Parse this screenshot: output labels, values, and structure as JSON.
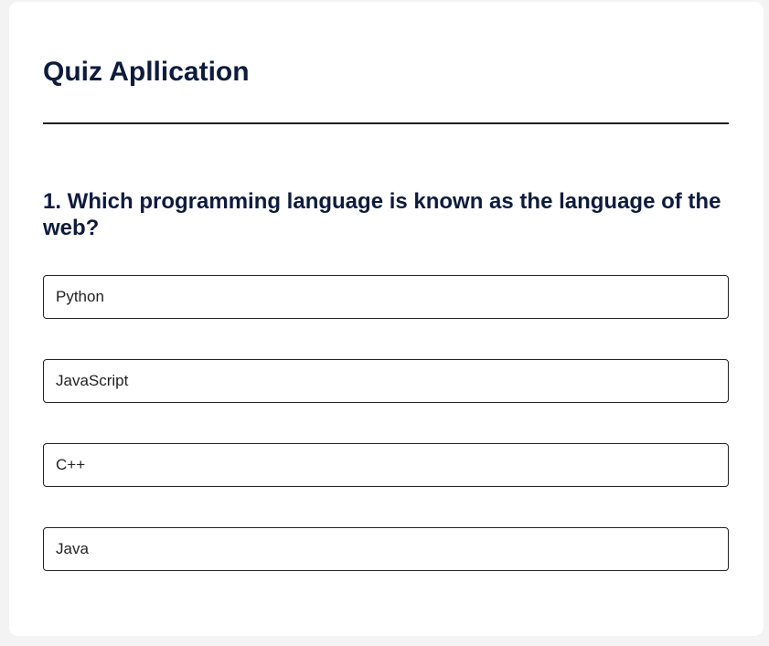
{
  "app": {
    "title": "Quiz Apllication"
  },
  "quiz": {
    "question": "1. Which programming language is known as the language of the web?",
    "options": [
      {
        "label": "Python"
      },
      {
        "label": "JavaScript"
      },
      {
        "label": "C++"
      },
      {
        "label": "Java"
      }
    ]
  }
}
